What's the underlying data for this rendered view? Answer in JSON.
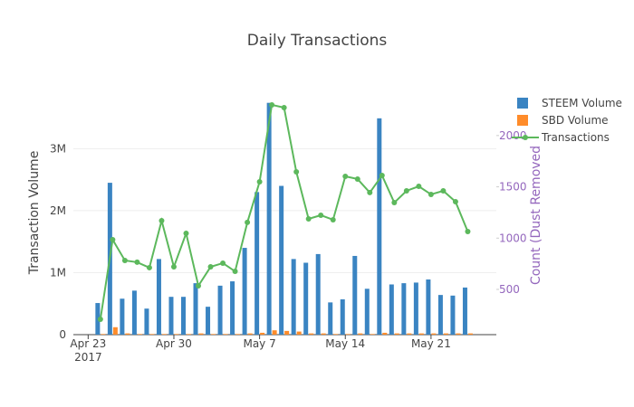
{
  "chart_data": {
    "type": "bar_line",
    "title": "Daily Transactions",
    "y_label": "Transaction Volume",
    "y2_label": "Count (Dust Removed",
    "x": [
      "2017-04-24",
      "2017-04-25",
      "2017-04-26",
      "2017-04-27",
      "2017-04-28",
      "2017-04-29",
      "2017-04-30",
      "2017-05-01",
      "2017-05-02",
      "2017-05-03",
      "2017-05-04",
      "2017-05-05",
      "2017-05-06",
      "2017-05-07",
      "2017-05-08",
      "2017-05-09",
      "2017-05-10",
      "2017-05-11",
      "2017-05-12",
      "2017-05-13",
      "2017-05-14",
      "2017-05-15",
      "2017-05-16",
      "2017-05-17",
      "2017-05-18",
      "2017-05-19",
      "2017-05-20",
      "2017-05-21",
      "2017-05-22",
      "2017-05-23",
      "2017-05-24"
    ],
    "xlim": [
      "2017-04-21T19:00:00Z",
      "2017-05-26T08:00:00Z"
    ],
    "xticks": [
      {
        "value": "2017-04-23",
        "label": "Apr 23\n2017"
      },
      {
        "value": "2017-04-30",
        "label": "Apr 30"
      },
      {
        "value": "2017-05-07",
        "label": "May 7"
      },
      {
        "value": "2017-05-14",
        "label": "May 14"
      },
      {
        "value": "2017-05-21",
        "label": "May 21"
      }
    ],
    "ylim": [
      0,
      3750000
    ],
    "yticks": [
      0,
      {
        "value": 1000000,
        "label": "1M"
      },
      {
        "value": 2000000,
        "label": "2M"
      },
      {
        "value": 3000000,
        "label": "3M"
      }
    ],
    "y2lim": [
      59,
      2325
    ],
    "y2ticks": [
      500,
      1000,
      1500,
      2000
    ],
    "grid": true,
    "legend": "top-right",
    "series": [
      {
        "name": "STEEM Volume",
        "kind": "bar",
        "color": "#3a84c2",
        "values": [
          510000,
          2450000,
          580000,
          710000,
          420000,
          1220000,
          610000,
          610000,
          830000,
          450000,
          790000,
          860000,
          1400000,
          2300000,
          3740000,
          2400000,
          1220000,
          1160000,
          1300000,
          520000,
          570000,
          1270000,
          740000,
          3490000,
          810000,
          830000,
          840000,
          890000,
          640000,
          630000,
          760000
        ]
      },
      {
        "name": "SBD Volume",
        "kind": "bar",
        "color": "#ff8c2a",
        "values": [
          10000,
          120000,
          20000,
          10000,
          10000,
          10000,
          10000,
          10000,
          20000,
          10000,
          10000,
          10000,
          20000,
          30000,
          70000,
          60000,
          50000,
          20000,
          20000,
          10000,
          10000,
          20000,
          10000,
          30000,
          20000,
          20000,
          20000,
          20000,
          20000,
          20000,
          20000
        ]
      },
      {
        "name": "Transactions",
        "kind": "line",
        "axis": "y2",
        "color": "#5cb85c",
        "values": [
          209,
          985,
          782,
          765,
          712,
          1170,
          720,
          1047,
          535,
          720,
          756,
          676,
          1153,
          1549,
          2299,
          2272,
          1646,
          1188,
          1223,
          1179,
          1602,
          1576,
          1444,
          1611,
          1346,
          1461,
          1505,
          1426,
          1461,
          1355,
          1064
        ]
      }
    ]
  }
}
